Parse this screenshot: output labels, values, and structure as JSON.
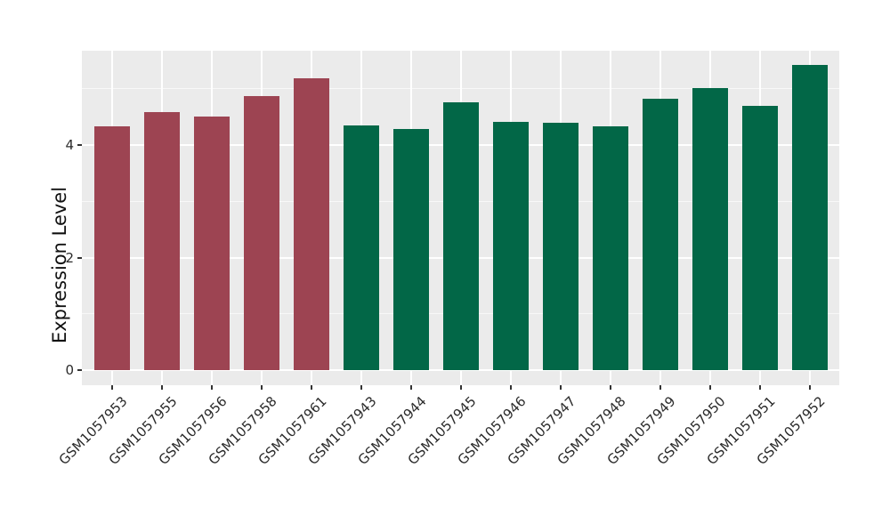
{
  "chart_data": {
    "type": "bar",
    "title": "",
    "ylabel": "Expression Level",
    "xlabel": "",
    "categories": [
      "GSM1057953",
      "GSM1057955",
      "GSM1057956",
      "GSM1057958",
      "GSM1057961",
      "GSM1057943",
      "GSM1057944",
      "GSM1057945",
      "GSM1057946",
      "GSM1057947",
      "GSM1057948",
      "GSM1057949",
      "GSM1057950",
      "GSM1057951",
      "GSM1057952"
    ],
    "values": [
      4.33,
      4.58,
      4.51,
      4.87,
      5.19,
      4.35,
      4.28,
      4.76,
      4.41,
      4.4,
      4.33,
      4.82,
      5.01,
      4.7,
      5.42
    ],
    "bar_groups": [
      "A",
      "A",
      "A",
      "A",
      "A",
      "B",
      "B",
      "B",
      "B",
      "B",
      "B",
      "B",
      "B",
      "B",
      "B"
    ],
    "group_colors": {
      "A": "#9d4452",
      "B": "#026747"
    },
    "yticks": [
      0,
      2,
      4
    ],
    "minor_yticks": [
      1,
      3,
      5
    ],
    "ylim": [
      0,
      5.68
    ],
    "grid": "on",
    "legend": "none",
    "panel_bg": "#ebebeb",
    "grid_color": "#ffffff",
    "minor_grid_color": "rgba(255,255,255,0.65)",
    "tick_color": "#333333",
    "text_color": "#2b2b2b"
  }
}
